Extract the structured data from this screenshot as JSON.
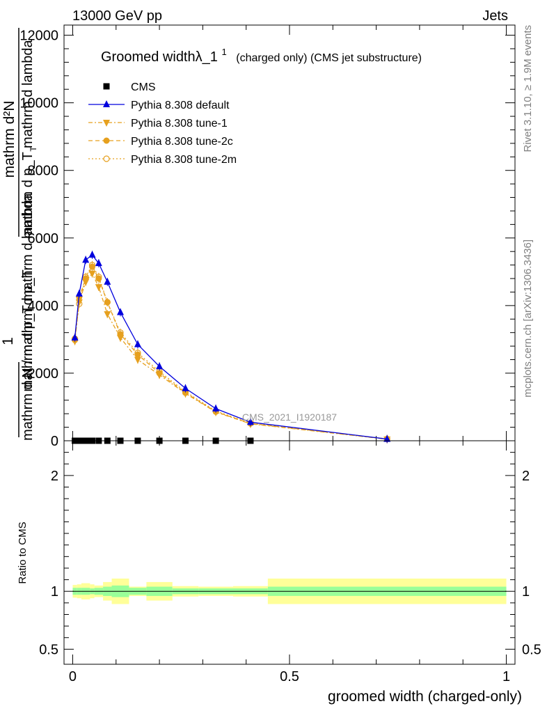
{
  "header": {
    "left": "13000 GeV pp",
    "right": "Jets"
  },
  "side": {
    "rivet": "Rivet 3.1.10, ≥ 1.9M events",
    "mcplots": "mcplots.cern.ch [arXiv:1306.3436]"
  },
  "title": {
    "main": "Groomed widthλ_1",
    "sup": "1",
    "rest": "(charged only) (CMS jet substructure)"
  },
  "watermark": "CMS_2021_I1920187",
  "ylabel_main": {
    "num": "mathrm d²N",
    "den": "mathrm d p_T mathrm d lambda",
    "den2": "mathrm d p_T mathrm d lambda",
    "one": "1",
    "frac_den": "mathrm d N / mathrm d p_T",
    "sub": "T"
  },
  "ylabel_ratio": "Ratio to CMS",
  "xlabel": "groomed width (charged-only)",
  "colors": {
    "default": "#0000dd",
    "tune": "#e6a01e",
    "band_inner": "#99ff99",
    "band_outer": "#ffff99"
  },
  "chart_data": [
    {
      "type": "line",
      "panel": "main",
      "xlim": [
        -0.02,
        1.02
      ],
      "ylim": [
        0,
        12300
      ],
      "xticks": [
        0,
        0.5,
        1
      ],
      "xtick_labels": [
        "0",
        "0.5",
        "1"
      ],
      "yticks": [
        0,
        2000,
        4000,
        6000,
        8000,
        10000,
        12000
      ],
      "ytick_labels": [
        "0",
        "2000",
        "4000",
        "6000",
        "8000",
        "10000",
        "12000"
      ],
      "legend": [
        {
          "name": "CMS",
          "marker": "square"
        },
        {
          "name": "Pythia 8.308 default",
          "marker": "triangle-up"
        },
        {
          "name": "Pythia 8.308 tune-1",
          "marker": "triangle-down"
        },
        {
          "name": "Pythia 8.308 tune-2c",
          "marker": "circle"
        },
        {
          "name": "Pythia 8.308 tune-2m",
          "marker": "circle-open"
        }
      ],
      "cms": {
        "x": [
          0.005,
          0.015,
          0.025,
          0.035,
          0.045,
          0.06,
          0.08,
          0.11,
          0.15,
          0.2,
          0.26,
          0.33,
          0.41
        ],
        "y": [
          0,
          0,
          0,
          0,
          0,
          0,
          0,
          0,
          0,
          0,
          0,
          0,
          0
        ]
      },
      "series": [
        {
          "name": "Pythia 8.308 default",
          "x": [
            0.005,
            0.015,
            0.03,
            0.045,
            0.06,
            0.08,
            0.11,
            0.15,
            0.2,
            0.26,
            0.33,
            0.41,
            0.725
          ],
          "y": [
            3050,
            4350,
            5350,
            5500,
            5250,
            4700,
            3800,
            2850,
            2200,
            1550,
            950,
            550,
            50
          ]
        },
        {
          "name": "Pythia 8.308 tune-1",
          "x": [
            0.005,
            0.015,
            0.03,
            0.045,
            0.06,
            0.08,
            0.11,
            0.15,
            0.2,
            0.26,
            0.33,
            0.41,
            0.725
          ],
          "y": [
            2950,
            4100,
            4700,
            4950,
            4550,
            3750,
            3050,
            2400,
            1950,
            1400,
            850,
            500,
            45
          ]
        },
        {
          "name": "Pythia 8.308 tune-2c",
          "x": [
            0.005,
            0.015,
            0.03,
            0.045,
            0.06,
            0.08,
            0.11,
            0.15,
            0.2,
            0.26,
            0.33,
            0.41,
            0.725
          ],
          "y": [
            2980,
            4250,
            4800,
            5150,
            4800,
            4100,
            3150,
            2550,
            2000,
            1420,
            860,
            510,
            50
          ]
        },
        {
          "name": "Pythia 8.308 tune-2m",
          "x": [
            0.005,
            0.015,
            0.03,
            0.045,
            0.06,
            0.08,
            0.11,
            0.15,
            0.2,
            0.26,
            0.33,
            0.41,
            0.725
          ],
          "y": [
            3020,
            4050,
            4850,
            5200,
            4850,
            4100,
            3200,
            2600,
            2050,
            1450,
            880,
            520,
            55
          ]
        }
      ]
    },
    {
      "type": "area",
      "panel": "ratio",
      "ylabel": "Ratio to CMS",
      "xlim": [
        -0.02,
        1.02
      ],
      "ylim": [
        0.37,
        2.3
      ],
      "yticks": [
        0.5,
        1,
        2
      ],
      "ytick_labels": [
        "0.5",
        "1",
        "2"
      ],
      "reference": 1,
      "bands": {
        "edges": [
          0,
          0.01,
          0.02,
          0.04,
          0.05,
          0.07,
          0.09,
          0.13,
          0.17,
          0.23,
          0.29,
          0.37,
          0.45,
          1.0
        ],
        "inner": [
          0.03,
          0.03,
          0.03,
          0.025,
          0.03,
          0.04,
          0.05,
          0.03,
          0.04,
          0.025,
          0.025,
          0.025,
          0.04
        ],
        "outer": [
          0.055,
          0.06,
          0.07,
          0.06,
          0.05,
          0.08,
          0.11,
          0.04,
          0.08,
          0.045,
          0.04,
          0.045,
          0.11
        ]
      }
    }
  ]
}
